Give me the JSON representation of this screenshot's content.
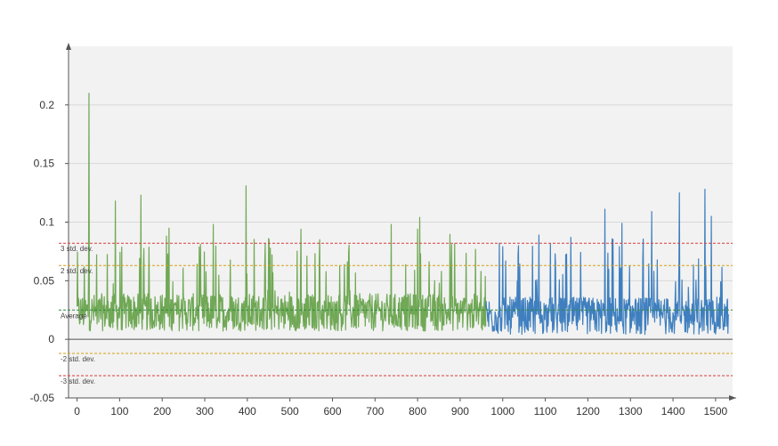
{
  "chart_data": {
    "type": "line",
    "title": "",
    "xlabel": "",
    "ylabel": "",
    "xlim": [
      -20,
      1540
    ],
    "ylim": [
      -0.05,
      0.25
    ],
    "x_ticks": [
      0,
      100,
      200,
      300,
      400,
      500,
      600,
      700,
      800,
      900,
      1000,
      1100,
      1200,
      1300,
      1400,
      1500
    ],
    "y_ticks": [
      -0.05,
      0,
      0.05,
      0.1,
      0.15,
      0.2
    ],
    "y_tick_labels": [
      "-0.05",
      "0",
      "0.05",
      "0.1",
      "0.15",
      "0.2"
    ],
    "grid": true,
    "legend": "none",
    "colors": {
      "series_1": "#70a855",
      "series_2": "#3f7fbf",
      "plot_background": "#f2f2f2",
      "gridline": "#d9d9d9",
      "average": "#2e8b3e",
      "std2": "#d4a017",
      "std3": "#d93a3a",
      "axis": "#555555"
    },
    "reference_lines": [
      {
        "label": "3 std. dev.",
        "y": 0.082,
        "color": "#d93a3a"
      },
      {
        "label": "2 std. dev.",
        "y": 0.063,
        "color": "#d4a017"
      },
      {
        "label": "Average",
        "y": 0.025,
        "color": "#2e8b3e"
      },
      {
        "label": "-2 std. dev.",
        "y": -0.012,
        "color": "#d4a017"
      },
      {
        "label": "-3 std. dev.",
        "y": -0.031,
        "color": "#d93a3a"
      }
    ],
    "series": [
      {
        "color": "#70a855",
        "x_range": [
          0,
          960
        ],
        "n_points": 960,
        "baseline": 0.025,
        "spikes": [
          {
            "x": 28,
            "y": 0.21
          },
          {
            "x": 90,
            "y": 0.118
          },
          {
            "x": 150,
            "y": 0.123
          },
          {
            "x": 210,
            "y": 0.088
          },
          {
            "x": 320,
            "y": 0.098
          },
          {
            "x": 397,
            "y": 0.131
          },
          {
            "x": 450,
            "y": 0.086
          },
          {
            "x": 570,
            "y": 0.085
          },
          {
            "x": 738,
            "y": 0.098
          },
          {
            "x": 805,
            "y": 0.104
          },
          {
            "x": 800,
            "y": 0.094
          }
        ]
      },
      {
        "color": "#3f7fbf",
        "x_range": [
          960,
          1530
        ],
        "n_points": 570,
        "baseline": 0.022,
        "spikes": [
          {
            "x": 1000,
            "y": 0.079
          },
          {
            "x": 1085,
            "y": 0.089
          },
          {
            "x": 1160,
            "y": 0.087
          },
          {
            "x": 1240,
            "y": 0.111
          },
          {
            "x": 1280,
            "y": 0.099
          },
          {
            "x": 1350,
            "y": 0.109
          },
          {
            "x": 1415,
            "y": 0.125
          },
          {
            "x": 1475,
            "y": 0.128
          },
          {
            "x": 1490,
            "y": 0.105
          }
        ]
      }
    ]
  }
}
